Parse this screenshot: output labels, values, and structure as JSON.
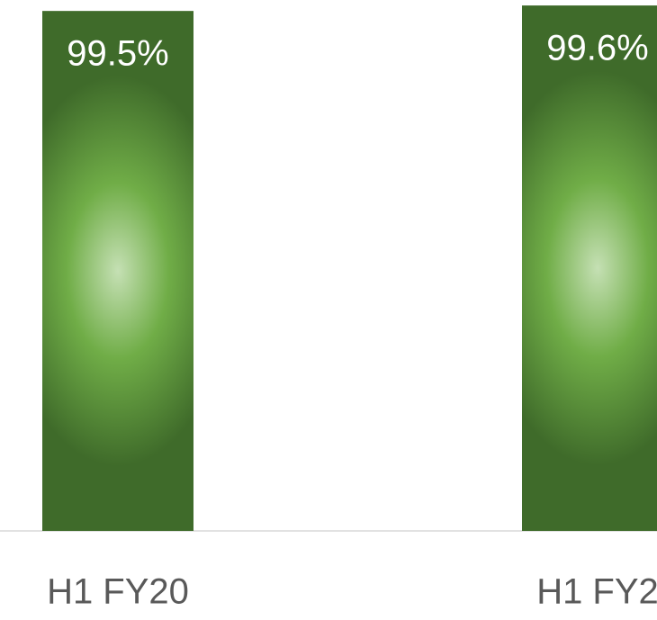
{
  "chart_data": {
    "type": "bar",
    "categories": [
      "H1 FY20",
      "H1 FY2"
    ],
    "values": [
      99.5,
      99.6
    ],
    "value_labels": [
      "99.5%",
      "99.6%"
    ],
    "color": "#70ad47",
    "ylim": [
      90,
      99.7
    ]
  }
}
